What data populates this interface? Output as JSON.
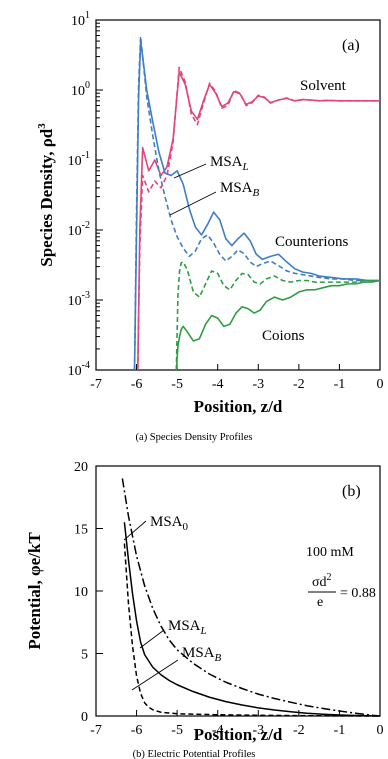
{
  "chart_data": [
    {
      "type": "line",
      "panel_label": "(a)",
      "caption": "(a) Species Density Profiles",
      "xlabel": "Position, z/d",
      "ylabel": "Species Density, ρd³",
      "ylabel_parts": {
        "main": "Species Density, ρd",
        "sup": "3"
      },
      "xlim": [
        -7,
        0
      ],
      "ylim": [
        0.0001,
        10
      ],
      "yscale": "log",
      "x_ticks": [
        "-7",
        "-6",
        "-5",
        "-4",
        "-3",
        "-2",
        "-1",
        "0"
      ],
      "y_ticks": [
        {
          "base": "10",
          "exp": "-4"
        },
        {
          "base": "10",
          "exp": "-3"
        },
        {
          "base": "10",
          "exp": "-2"
        },
        {
          "base": "10",
          "exp": "-1"
        },
        {
          "base": "10",
          "exp": "0"
        },
        {
          "base": "10",
          "exp": "1"
        }
      ],
      "annotations": {
        "solvent": "Solvent",
        "counterions": "Counterions",
        "coions": "Coions",
        "msa_l": {
          "main": "MSA",
          "sub": "L"
        },
        "msa_b": {
          "main": "MSA",
          "sub": "B"
        }
      },
      "colors": {
        "solvent": "#e0457b",
        "counterions": "#3f7ec4",
        "coions": "#2e9e44"
      },
      "series": [
        {
          "group": "solvent",
          "model": "MSA_L",
          "style": "solid",
          "x": [
            -5.97,
            -5.92,
            -5.85,
            -5.7,
            -5.55,
            -5.4,
            -5.25,
            -5.1,
            -4.95,
            -4.8,
            -4.65,
            -4.5,
            -4.35,
            -4.2,
            -4.05,
            -3.9,
            -3.75,
            -3.6,
            -3.45,
            -3.3,
            -3.15,
            -3.0,
            -2.85,
            -2.7,
            -2.5,
            -2.3,
            -2.1,
            -1.9,
            -1.7,
            -1.5,
            -1.3,
            -1.0,
            -0.5,
            0.0
          ],
          "y": [
            0.0001,
            0.01,
            0.15,
            0.07,
            0.1,
            0.06,
            0.08,
            0.2,
            1.8,
            1.2,
            0.5,
            0.38,
            0.7,
            1.2,
            0.9,
            0.58,
            0.65,
            0.95,
            0.88,
            0.62,
            0.68,
            0.82,
            0.78,
            0.66,
            0.72,
            0.76,
            0.7,
            0.73,
            0.72,
            0.7,
            0.71,
            0.7,
            0.7,
            0.7
          ]
        },
        {
          "group": "solvent",
          "model": "MSA_B",
          "style": "dashed",
          "x": [
            -5.97,
            -5.92,
            -5.85,
            -5.7,
            -5.55,
            -5.4,
            -5.25,
            -5.1,
            -4.95,
            -4.8,
            -4.65,
            -4.5,
            -4.35,
            -4.2,
            -4.05,
            -3.9,
            -3.75,
            -3.6,
            -3.45,
            -3.3,
            -3.15,
            -3.0,
            -2.85,
            -2.7,
            -2.5,
            -2.3,
            -2.1,
            -1.9,
            -1.7,
            -1.5,
            -1.3,
            -1.0,
            -0.5,
            0.0
          ],
          "y": [
            0.0001,
            0.006,
            0.06,
            0.035,
            0.05,
            0.04,
            0.06,
            0.18,
            2.1,
            1.3,
            0.45,
            0.32,
            0.65,
            1.25,
            0.95,
            0.55,
            0.6,
            0.98,
            0.9,
            0.6,
            0.66,
            0.84,
            0.79,
            0.65,
            0.72,
            0.77,
            0.7,
            0.73,
            0.72,
            0.7,
            0.71,
            0.7,
            0.7,
            0.7
          ]
        },
        {
          "group": "counterions",
          "model": "MSA_L",
          "style": "solid",
          "x": [
            -6.05,
            -6.0,
            -5.95,
            -5.9,
            -5.85,
            -5.75,
            -5.6,
            -5.45,
            -5.3,
            -5.15,
            -5.0,
            -4.85,
            -4.7,
            -4.55,
            -4.4,
            -4.25,
            -4.1,
            -3.95,
            -3.8,
            -3.65,
            -3.5,
            -3.35,
            -3.2,
            -3.05,
            -2.9,
            -2.7,
            -2.5,
            -2.3,
            -2.1,
            -1.9,
            -1.7,
            -1.5,
            -1.2,
            -0.9,
            -0.6,
            -0.3,
            0.0
          ],
          "y": [
            0.0001,
            0.01,
            0.8,
            5.0,
            3.0,
            1.0,
            0.35,
            0.13,
            0.065,
            0.06,
            0.07,
            0.045,
            0.02,
            0.011,
            0.0085,
            0.012,
            0.018,
            0.014,
            0.0075,
            0.006,
            0.0075,
            0.009,
            0.007,
            0.0045,
            0.0038,
            0.0042,
            0.0045,
            0.0035,
            0.0028,
            0.0025,
            0.0024,
            0.0022,
            0.0021,
            0.002,
            0.002,
            0.0019,
            0.0019
          ]
        },
        {
          "group": "counterions",
          "model": "MSA_B",
          "style": "dashed",
          "x": [
            -6.05,
            -6.0,
            -5.95,
            -5.9,
            -5.85,
            -5.75,
            -5.6,
            -5.45,
            -5.3,
            -5.15,
            -5.0,
            -4.85,
            -4.7,
            -4.55,
            -4.4,
            -4.25,
            -4.1,
            -3.95,
            -3.8,
            -3.65,
            -3.5,
            -3.35,
            -3.2,
            -3.05,
            -2.9,
            -2.7,
            -2.5,
            -2.3,
            -2.1,
            -1.9,
            -1.7,
            -1.5,
            -1.2,
            -0.9,
            -0.6,
            -0.3,
            0.0
          ],
          "y": [
            0.0001,
            0.02,
            1.2,
            5.8,
            3.0,
            0.8,
            0.22,
            0.07,
            0.03,
            0.014,
            0.008,
            0.0055,
            0.0042,
            0.005,
            0.0075,
            0.0085,
            0.0065,
            0.0045,
            0.0036,
            0.0042,
            0.0052,
            0.0046,
            0.0035,
            0.003,
            0.0033,
            0.0036,
            0.0031,
            0.0026,
            0.0024,
            0.0023,
            0.0022,
            0.0021,
            0.002,
            0.002,
            0.0019,
            0.0019,
            0.0019
          ]
        },
        {
          "group": "coions",
          "model": "MSA_L",
          "style": "solid",
          "x": [
            -5.02,
            -4.98,
            -4.94,
            -4.9,
            -4.85,
            -4.75,
            -4.6,
            -4.45,
            -4.3,
            -4.15,
            -4.0,
            -3.85,
            -3.7,
            -3.55,
            -3.4,
            -3.25,
            -3.1,
            -2.95,
            -2.8,
            -2.6,
            -2.4,
            -2.2,
            -2.0,
            -1.8,
            -1.6,
            -1.4,
            -1.2,
            -1.0,
            -0.8,
            -0.6,
            -0.4,
            -0.2,
            0.0
          ],
          "y": [
            0.0001,
            0.00022,
            0.0003,
            0.00038,
            0.00042,
            0.00035,
            0.00026,
            0.00028,
            0.00045,
            0.0006,
            0.00055,
            0.00042,
            0.00045,
            0.00065,
            0.0008,
            0.00075,
            0.00065,
            0.00072,
            0.00095,
            0.0011,
            0.001,
            0.0011,
            0.0013,
            0.0014,
            0.0014,
            0.0015,
            0.0016,
            0.0016,
            0.0017,
            0.0017,
            0.0018,
            0.0018,
            0.0019
          ]
        },
        {
          "group": "coions",
          "model": "MSA_B",
          "style": "dashed",
          "x": [
            -5.02,
            -4.98,
            -4.94,
            -4.9,
            -4.85,
            -4.75,
            -4.6,
            -4.45,
            -4.3,
            -4.15,
            -4.0,
            -3.85,
            -3.7,
            -3.55,
            -3.4,
            -3.25,
            -3.1,
            -2.95,
            -2.8,
            -2.6,
            -2.4,
            -2.2,
            -2.0,
            -1.8,
            -1.6,
            -1.4,
            -1.2,
            -1.0,
            -0.8,
            -0.6,
            -0.4,
            -0.2,
            0.0
          ],
          "y": [
            0.0001,
            0.0012,
            0.0026,
            0.0034,
            0.0035,
            0.0027,
            0.0013,
            0.0011,
            0.0017,
            0.0026,
            0.0024,
            0.0016,
            0.0014,
            0.0019,
            0.0024,
            0.0023,
            0.0018,
            0.0017,
            0.002,
            0.0022,
            0.0019,
            0.0018,
            0.0019,
            0.0019,
            0.0018,
            0.0018,
            0.0018,
            0.0018,
            0.0018,
            0.0018,
            0.0019,
            0.0019,
            0.0019
          ]
        }
      ]
    },
    {
      "type": "line",
      "panel_label": "(b)",
      "caption": "(b) Electric Potential Profiles",
      "xlabel": "Position, z/d",
      "ylabel": "Potential, φe/kT",
      "xlim": [
        -7,
        0
      ],
      "ylim": [
        0,
        20
      ],
      "x_ticks": [
        "-7",
        "-6",
        "-5",
        "-4",
        "-3",
        "-2",
        "-1",
        "0"
      ],
      "y_ticks": [
        "0",
        "5",
        "10",
        "15",
        "20"
      ],
      "annotations": {
        "msa_0": {
          "main": "MSA",
          "sub": "0"
        },
        "msa_l": {
          "main": "MSA",
          "sub": "L"
        },
        "msa_b": {
          "main": "MSA",
          "sub": "B"
        },
        "concentration": "100 mM",
        "fraction_num": "σd",
        "fraction_num_sup": "2",
        "fraction_den": "e",
        "fraction_value": "= 0.88"
      },
      "series": [
        {
          "model": "MSA_0",
          "style": "dashdot",
          "x": [
            -6.35,
            -6.2,
            -6.0,
            -5.8,
            -5.6,
            -5.4,
            -5.2,
            -5.0,
            -4.6,
            -4.2,
            -3.8,
            -3.4,
            -3.0,
            -2.6,
            -2.2,
            -1.8,
            -1.4,
            -1.0,
            -0.6,
            -0.2,
            0.0
          ],
          "y": [
            19.0,
            16.0,
            12.8,
            10.4,
            8.6,
            7.2,
            6.1,
            5.3,
            4.2,
            3.35,
            2.7,
            2.2,
            1.75,
            1.4,
            1.1,
            0.82,
            0.6,
            0.4,
            0.22,
            0.06,
            0.0
          ]
        },
        {
          "model": "MSA_L",
          "style": "solid",
          "x": [
            -6.3,
            -6.2,
            -6.1,
            -6.0,
            -5.9,
            -5.8,
            -5.6,
            -5.4,
            -5.2,
            -5.0,
            -4.6,
            -4.2,
            -3.8,
            -3.4,
            -3.0,
            -2.6,
            -2.2,
            -1.8,
            -1.4,
            -1.0,
            -0.6,
            -0.2,
            0.0
          ],
          "y": [
            15.5,
            12.5,
            9.8,
            7.6,
            5.9,
            4.9,
            3.9,
            3.3,
            2.85,
            2.5,
            1.95,
            1.5,
            1.15,
            0.88,
            0.65,
            0.48,
            0.34,
            0.22,
            0.14,
            0.08,
            0.04,
            0.01,
            0.0
          ]
        },
        {
          "model": "MSA_B",
          "style": "dashed",
          "x": [
            -6.3,
            -6.2,
            -6.1,
            -6.0,
            -5.9,
            -5.8,
            -5.7,
            -5.6,
            -5.4,
            -5.0,
            -4.0,
            -3.0,
            -2.0,
            -1.0,
            0.0
          ],
          "y": [
            13.8,
            9.0,
            5.6,
            3.2,
            1.8,
            1.05,
            0.7,
            0.5,
            0.3,
            0.18,
            0.1,
            0.06,
            0.03,
            0.01,
            0.0
          ]
        }
      ]
    }
  ]
}
